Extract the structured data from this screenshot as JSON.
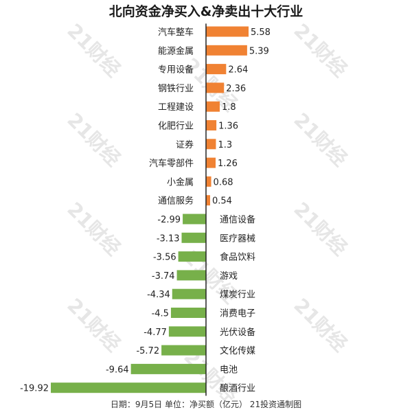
{
  "chart_data": {
    "type": "bar",
    "orientation": "horizontal",
    "title": "北向资金净买入&净卖出十大行业",
    "categories": [
      "汽车整车",
      "能源金属",
      "专用设备",
      "钢铁行业",
      "工程建设",
      "化肥行业",
      "证券",
      "汽车零部件",
      "小金属",
      "通信服务",
      "通信设备",
      "医疗器械",
      "食品饮料",
      "游戏",
      "煤炭行业",
      "消费电子",
      "光伏设备",
      "文化传媒",
      "电池",
      "酿酒行业"
    ],
    "values": [
      5.58,
      5.39,
      2.64,
      2.36,
      1.8,
      1.36,
      1.3,
      1.26,
      0.68,
      0.54,
      -2.99,
      -3.13,
      -3.56,
      -3.74,
      -4.34,
      -4.5,
      -4.77,
      -5.72,
      -9.64,
      -19.92
    ],
    "value_labels": [
      "5.58",
      "5.39",
      "2.64",
      "2.36",
      "1.8",
      "1.36",
      "1.3",
      "1.26",
      "0.68",
      "0.54",
      "-2.99",
      "-3.13",
      "-3.56",
      "-3.74",
      "-4.34",
      "-4.5",
      "-4.77",
      "-5.72",
      "-9.64",
      "-19.92"
    ],
    "colors": {
      "positive": "#f08233",
      "negative": "#77b04a",
      "axis": "#222222"
    },
    "xlim": [
      -19.92,
      5.58
    ],
    "grid": false,
    "legend": "none"
  },
  "footer": "日期：9月5日 单位：净买额（亿元） 21投资通制图",
  "watermark": "21财经"
}
